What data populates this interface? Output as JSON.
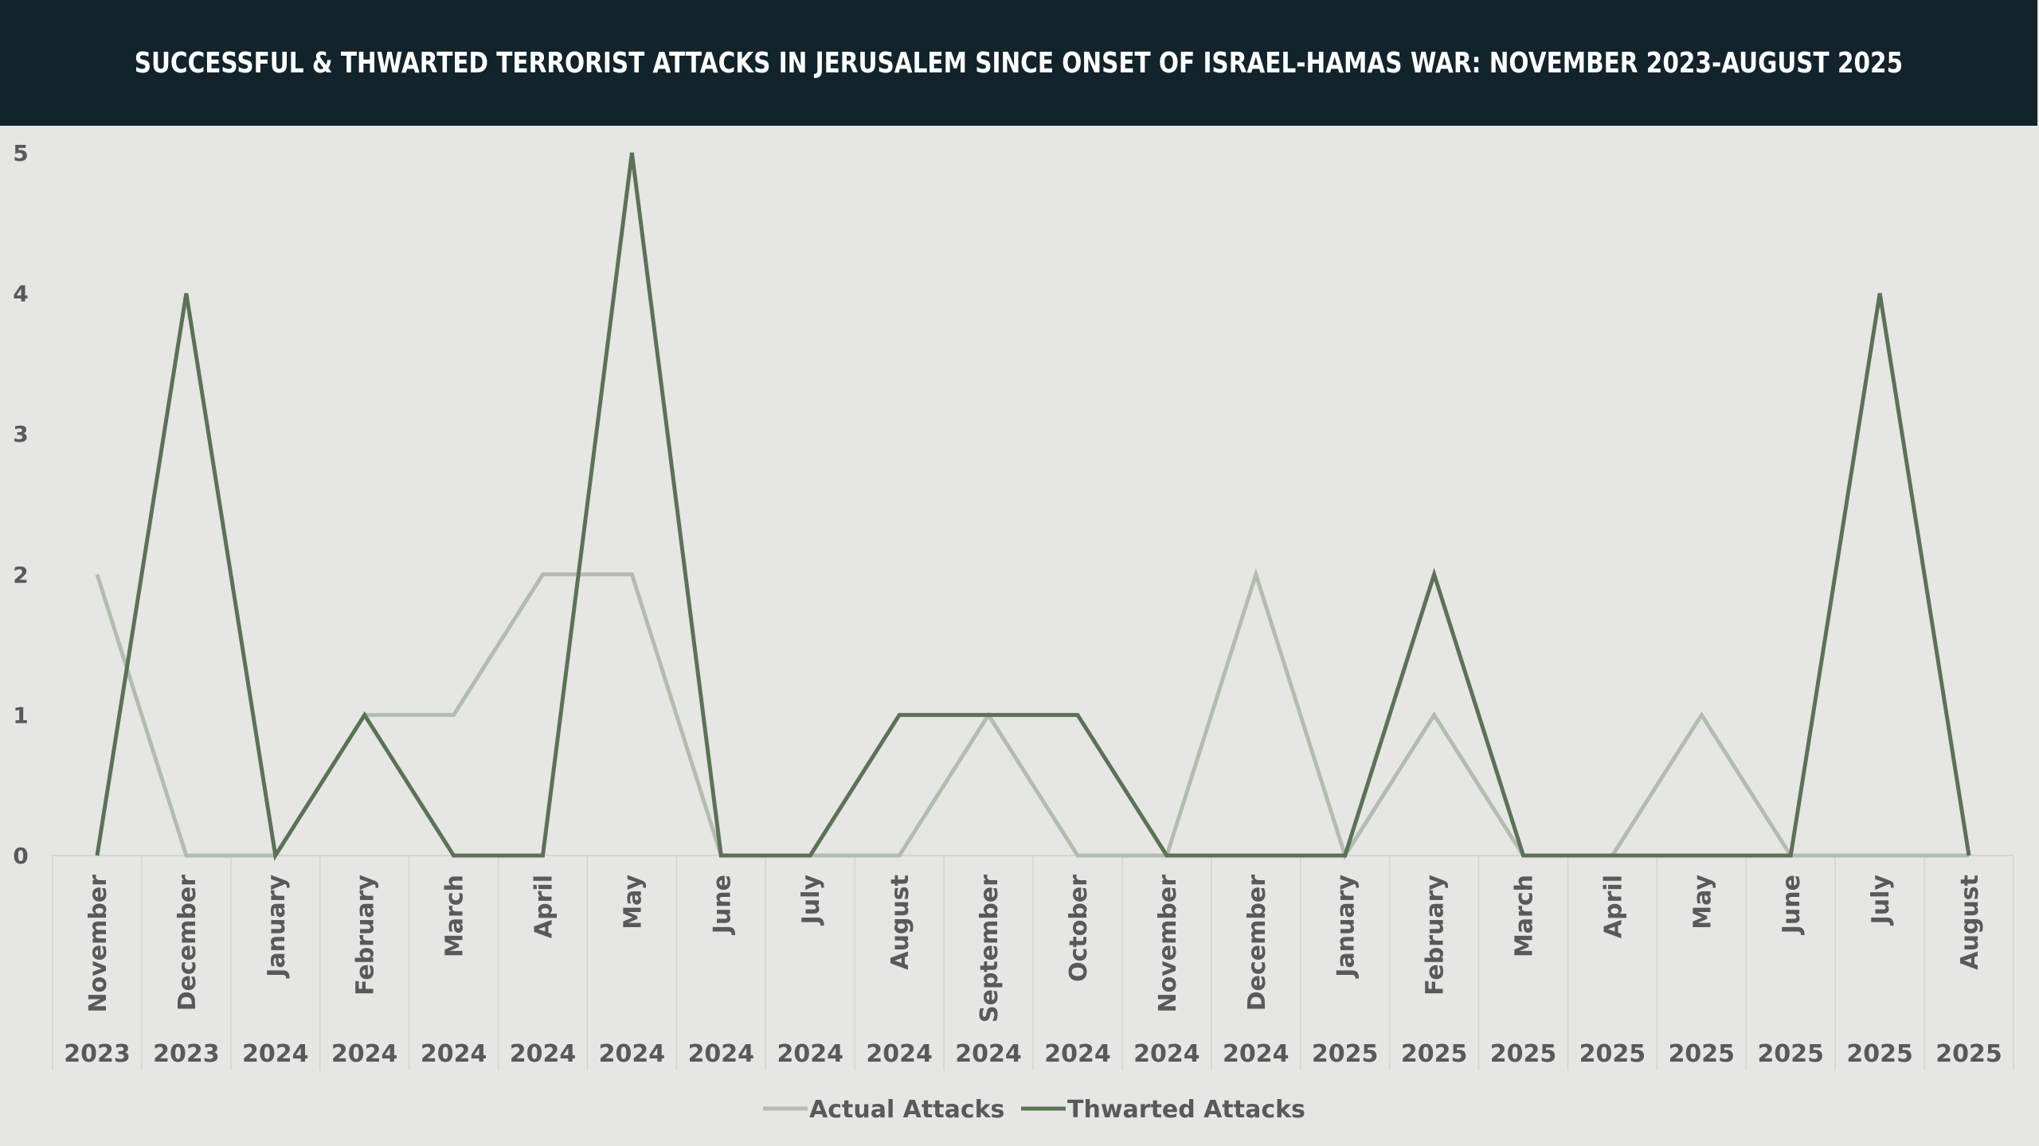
{
  "header": {
    "title": "SUCCESSFUL & THWARTED TERRORIST ATTACKS IN JERUSALEM SINCE ONSET OF ISRAEL-HAMAS WAR: NOVEMBER 2023-AUGUST 2025"
  },
  "colors": {
    "header_bg": "#12232c",
    "background": "#e6e6e5",
    "actual": "#b3bdaf",
    "thwarted": "#5c7258",
    "axis_text": "#595959"
  },
  "chart_data": {
    "type": "line",
    "title": "SUCCESSFUL & THWARTED TERRORIST ATTACKS IN JERUSALEM SINCE ONSET OF ISRAEL-HAMAS WAR: NOVEMBER 2023-AUGUST 2025",
    "categories": [
      {
        "month": "November",
        "year": "2023"
      },
      {
        "month": "December",
        "year": "2023"
      },
      {
        "month": "January",
        "year": "2024"
      },
      {
        "month": "February",
        "year": "2024"
      },
      {
        "month": "March",
        "year": "2024"
      },
      {
        "month": "April",
        "year": "2024"
      },
      {
        "month": "May",
        "year": "2024"
      },
      {
        "month": "June",
        "year": "2024"
      },
      {
        "month": "July",
        "year": "2024"
      },
      {
        "month": "August",
        "year": "2024"
      },
      {
        "month": "September",
        "year": "2024"
      },
      {
        "month": "October",
        "year": "2024"
      },
      {
        "month": "November",
        "year": "2024"
      },
      {
        "month": "December",
        "year": "2024"
      },
      {
        "month": "January",
        "year": "2025"
      },
      {
        "month": "February",
        "year": "2025"
      },
      {
        "month": "March",
        "year": "2025"
      },
      {
        "month": "April",
        "year": "2025"
      },
      {
        "month": "May",
        "year": "2025"
      },
      {
        "month": "June",
        "year": "2025"
      },
      {
        "month": "July",
        "year": "2025"
      },
      {
        "month": "August",
        "year": "2025"
      }
    ],
    "series": [
      {
        "name": "Actual Attacks",
        "color": "#b3bdaf",
        "values": [
          2,
          0,
          0,
          1,
          1,
          2,
          2,
          0,
          0,
          0,
          1,
          0,
          0,
          2,
          0,
          1,
          0,
          0,
          1,
          0,
          0,
          0
        ]
      },
      {
        "name": "Thwarted Attacks",
        "color": "#5c7258",
        "values": [
          0,
          4,
          0,
          1,
          0,
          0,
          5,
          0,
          0,
          1,
          1,
          1,
          0,
          0,
          0,
          2,
          0,
          0,
          0,
          0,
          4,
          0
        ]
      }
    ],
    "yticks": [
      "0",
      "1",
      "2",
      "3",
      "4",
      "5"
    ],
    "ylim": [
      0,
      5
    ],
    "xlabel": "",
    "ylabel": "",
    "grid": "vertical category separators",
    "legend": "bottom-center"
  }
}
